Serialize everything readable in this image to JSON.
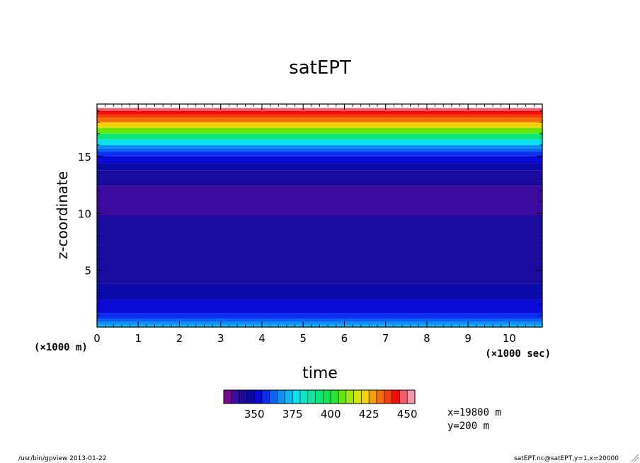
{
  "chart_data": {
    "type": "heatmap",
    "title": "satEPT",
    "xlabel": "time",
    "ylabel": "z-coordinate",
    "x_unit": "(×1000 sec)",
    "y_unit": "(×1000 m)",
    "xlim": [
      0,
      10.8
    ],
    "ylim": [
      0,
      19.6
    ],
    "x_ticks": [
      "0",
      "1",
      "2",
      "3",
      "4",
      "5",
      "6",
      "7",
      "8",
      "9",
      "10"
    ],
    "y_ticks": [
      "5",
      "10",
      "15"
    ],
    "colorbar": {
      "levels": [
        335,
        340,
        345,
        350,
        355,
        360,
        365,
        370,
        375,
        380,
        385,
        390,
        395,
        400,
        405,
        410,
        415,
        420,
        425,
        430,
        435,
        440,
        445,
        450,
        455
      ],
      "labels": [
        "350",
        "375",
        "400",
        "425",
        "450"
      ],
      "colors": [
        "#7a0a8c",
        "#3c0a9c",
        "#1a0a9e",
        "#0a0aa8",
        "#0a0ad8",
        "#0a2ff0",
        "#0a64f5",
        "#0a90f5",
        "#0ab9f5",
        "#0ae0f0",
        "#0ae6c8",
        "#0ae6a0",
        "#0ae678",
        "#0ae650",
        "#2de632",
        "#64e60a",
        "#a0e60a",
        "#d2e60a",
        "#f5d20a",
        "#f5a00a",
        "#f56e0a",
        "#f53c0a",
        "#f50a0a",
        "#f55a6e",
        "#f596a8"
      ]
    },
    "profile": [
      {
        "z": 0.0,
        "value": 375
      },
      {
        "z": 0.2,
        "value": 370
      },
      {
        "z": 0.45,
        "value": 365
      },
      {
        "z": 0.75,
        "value": 360
      },
      {
        "z": 1.2,
        "value": 355
      },
      {
        "z": 2.4,
        "value": 350
      },
      {
        "z": 3.8,
        "value": 345
      },
      {
        "z": 9.8,
        "value": 340
      },
      {
        "z": 12.4,
        "value": 345
      },
      {
        "z": 13.8,
        "value": 350
      },
      {
        "z": 14.4,
        "value": 355
      },
      {
        "z": 15.0,
        "value": 360
      },
      {
        "z": 15.4,
        "value": 365
      },
      {
        "z": 15.7,
        "value": 370
      },
      {
        "z": 16.0,
        "value": 380
      },
      {
        "z": 16.5,
        "value": 395
      },
      {
        "z": 17.0,
        "value": 410
      },
      {
        "z": 17.5,
        "value": 425
      },
      {
        "z": 18.0,
        "value": 435
      },
      {
        "z": 18.4,
        "value": 440
      },
      {
        "z": 18.7,
        "value": 445
      },
      {
        "z": 19.0,
        "value": 450
      }
    ],
    "annotations": [
      "x=19800 m",
      "y=200 m"
    ]
  },
  "footer": {
    "left": "/usr/bin/gpview  2013-01-22",
    "right": "satEPT.nc@satEPT,y=1,x=20000"
  }
}
